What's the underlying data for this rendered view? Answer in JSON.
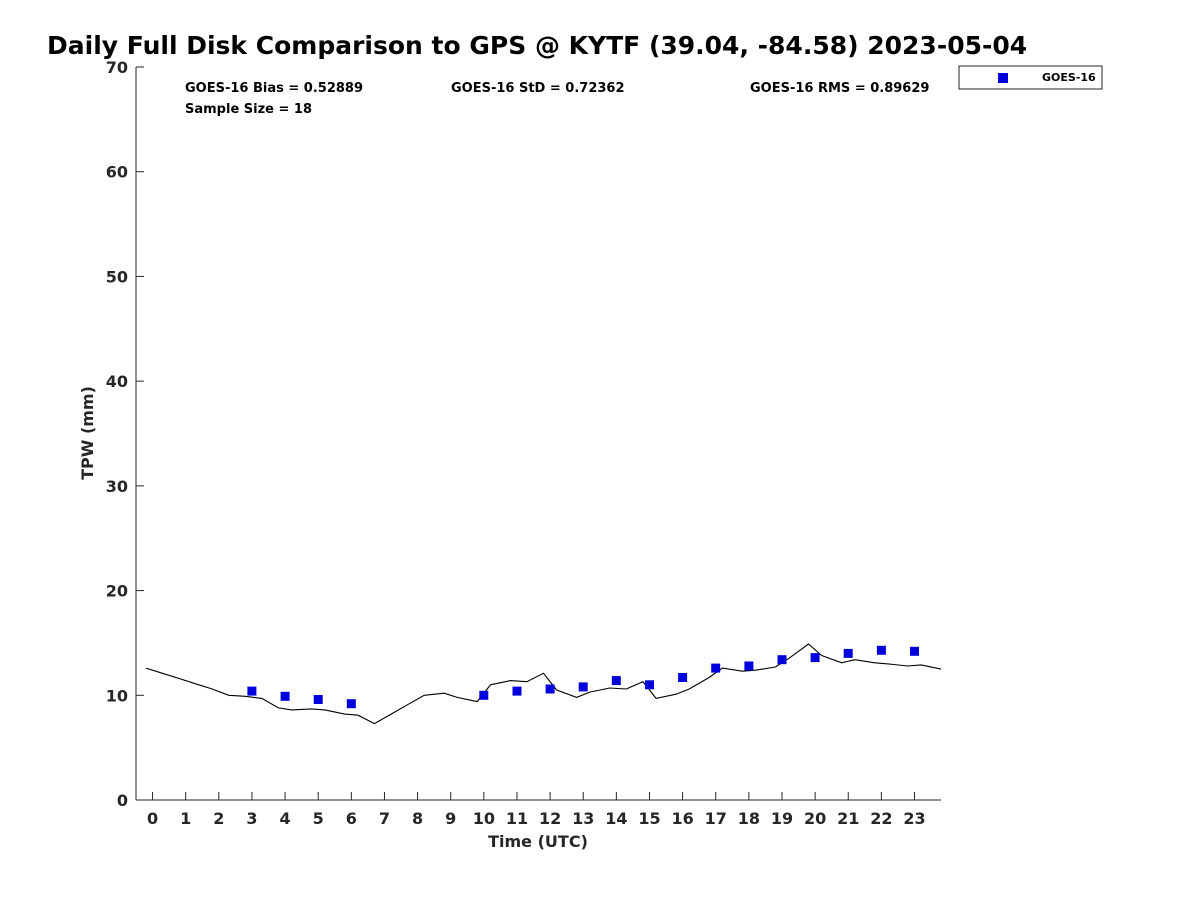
{
  "chart_data": {
    "type": "scatter",
    "title": "Daily Full Disk Comparison to GPS @ KYTF (39.04, -84.58) 2023-05-04",
    "xlabel": "Time (UTC)",
    "ylabel": "TPW (mm)",
    "xlim": [
      -0.5,
      23.8
    ],
    "ylim": [
      0,
      70
    ],
    "x_ticks": [
      0,
      1,
      2,
      3,
      4,
      5,
      6,
      7,
      8,
      9,
      10,
      11,
      12,
      13,
      14,
      15,
      16,
      17,
      18,
      19,
      20,
      21,
      22,
      23
    ],
    "y_ticks": [
      0,
      10,
      20,
      30,
      40,
      50,
      60,
      70
    ],
    "grid": false,
    "legend": {
      "position": "top-right",
      "entries": [
        "GOES-16"
      ]
    },
    "stats": {
      "bias": "GOES-16 Bias = 0.52889",
      "std": "GOES-16 StD = 0.72362",
      "rms": "GOES-16 RMS = 0.89629",
      "sample": "Sample Size = 18"
    },
    "colors": {
      "goes16": "#0000dd",
      "gps": "#000000"
    },
    "series": [
      {
        "name": "GOES-16",
        "kind": "scatter",
        "x": [
          3,
          4,
          5,
          6,
          10,
          11,
          12,
          13,
          14,
          15,
          16,
          17,
          18,
          19,
          20,
          21,
          22,
          23
        ],
        "y": [
          10.4,
          9.9,
          9.6,
          9.2,
          10.0,
          10.4,
          10.6,
          10.8,
          11.4,
          11.0,
          11.7,
          12.6,
          12.8,
          13.4,
          13.6,
          14.0,
          14.3,
          14.2
        ]
      },
      {
        "kind": "line",
        "x": [
          -0.2,
          0.3,
          0.8,
          1.3,
          1.8,
          2.3,
          2.8,
          3.3,
          3.8,
          4.2,
          4.8,
          5.2,
          5.8,
          6.2,
          6.7,
          7.2,
          7.7,
          8.2,
          8.8,
          9.2,
          9.8,
          10.2,
          10.8,
          11.3,
          11.8,
          12.2,
          12.8,
          13.2,
          13.8,
          14.3,
          14.8,
          15.2,
          15.8,
          16.2,
          16.8,
          17.2,
          17.8,
          18.2,
          18.8,
          19.2,
          19.8,
          20.2,
          20.8,
          21.2,
          21.8,
          22.2,
          22.8,
          23.2,
          23.8
        ],
        "y": [
          12.6,
          12.1,
          11.6,
          11.1,
          10.6,
          10.0,
          9.9,
          9.7,
          8.8,
          8.6,
          8.7,
          8.6,
          8.2,
          8.1,
          7.3,
          8.2,
          9.1,
          10.0,
          10.2,
          9.8,
          9.4,
          11.0,
          11.4,
          11.3,
          12.1,
          10.5,
          9.8,
          10.3,
          10.7,
          10.6,
          11.3,
          9.7,
          10.1,
          10.6,
          11.7,
          12.6,
          12.3,
          12.4,
          12.7,
          13.5,
          14.9,
          13.8,
          13.1,
          13.4,
          13.1,
          13.0,
          12.8,
          12.9,
          12.5
        ]
      }
    ]
  }
}
